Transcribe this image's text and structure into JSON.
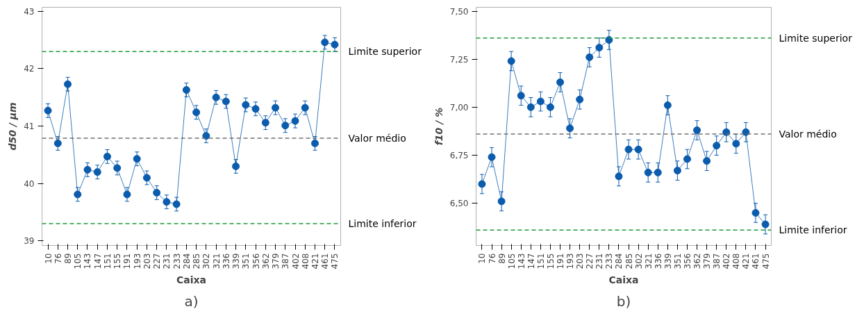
{
  "chart_data": [
    {
      "type": "line",
      "xlabel": "Caixa",
      "ylabel": "d50 / µm",
      "annotations": [
        "a)"
      ],
      "categories": [
        "10",
        "76",
        "89",
        "105",
        "143",
        "147",
        "151",
        "155",
        "191",
        "193",
        "203",
        "227",
        "231",
        "233",
        "284",
        "285",
        "302",
        "321",
        "336",
        "339",
        "351",
        "356",
        "362",
        "379",
        "387",
        "402",
        "408",
        "421",
        "461",
        "475"
      ],
      "series": [
        {
          "color": "#0b5cad",
          "values": [
            41.27,
            40.7,
            41.73,
            39.81,
            40.24,
            40.2,
            40.47,
            40.27,
            39.81,
            40.43,
            40.1,
            39.84,
            39.68,
            39.64,
            41.63,
            41.24,
            40.83,
            41.5,
            41.43,
            40.3,
            41.37,
            41.3,
            41.06,
            41.32,
            41.01,
            41.09,
            41.32,
            40.7,
            42.46,
            42.42
          ],
          "errors": [
            0.12,
            0.12,
            0.12,
            0.12,
            0.12,
            0.12,
            0.12,
            0.12,
            0.12,
            0.12,
            0.12,
            0.12,
            0.12,
            0.12,
            0.12,
            0.12,
            0.12,
            0.12,
            0.12,
            0.12,
            0.12,
            0.12,
            0.12,
            0.12,
            0.12,
            0.12,
            0.12,
            0.12,
            0.12,
            0.12
          ]
        }
      ],
      "ylim": [
        38.92,
        43.07
      ],
      "yticks": [
        39,
        40,
        41,
        42,
        43
      ],
      "grid": false,
      "marker": "circle",
      "line_style": "solid",
      "ref_lines": [
        {
          "axis": "y",
          "value": 42.3,
          "label": "Limite superior",
          "color": "#1a9a3a",
          "line_style": "dashed"
        },
        {
          "axis": "y",
          "value": 40.79,
          "label": "Valor médio",
          "color": "#707070",
          "line_style": "dashed"
        },
        {
          "axis": "y",
          "value": 39.3,
          "label": "Limite inferior",
          "color": "#1a9a3a",
          "line_style": "dashed"
        }
      ]
    },
    {
      "type": "line",
      "xlabel": "Caixa",
      "ylabel": "f10 / %",
      "annotations": [
        "b)"
      ],
      "categories": [
        "10",
        "76",
        "89",
        "105",
        "143",
        "147",
        "151",
        "155",
        "191",
        "193",
        "203",
        "227",
        "231",
        "233",
        "284",
        "285",
        "302",
        "321",
        "336",
        "339",
        "351",
        "356",
        "362",
        "379",
        "387",
        "402",
        "408",
        "421",
        "461",
        "475"
      ],
      "series": [
        {
          "color": "#0b5cad",
          "values": [
            6.6,
            6.74,
            6.51,
            7.24,
            7.06,
            7.0,
            7.03,
            7.0,
            7.13,
            6.89,
            7.04,
            7.26,
            7.31,
            7.35,
            6.64,
            6.78,
            6.78,
            6.66,
            6.66,
            7.01,
            6.67,
            6.73,
            6.88,
            6.72,
            6.8,
            6.87,
            6.81,
            6.87,
            6.45,
            6.39
          ],
          "errors": [
            0.05,
            0.05,
            0.05,
            0.05,
            0.05,
            0.05,
            0.05,
            0.05,
            0.05,
            0.05,
            0.05,
            0.05,
            0.05,
            0.05,
            0.05,
            0.05,
            0.05,
            0.05,
            0.05,
            0.05,
            0.05,
            0.05,
            0.05,
            0.05,
            0.05,
            0.05,
            0.05,
            0.05,
            0.05,
            0.05
          ]
        }
      ],
      "ylim": [
        6.28,
        7.52
      ],
      "yticks": [
        {
          "value": 6.5,
          "label": "6,50"
        },
        {
          "value": 6.75,
          "label": "6,75"
        },
        {
          "value": 7.0,
          "label": "7,00"
        },
        {
          "value": 7.25,
          "label": "7,25"
        },
        {
          "value": 7.5,
          "label": "7,50"
        }
      ],
      "grid": false,
      "marker": "circle",
      "line_style": "solid",
      "ref_lines": [
        {
          "axis": "y",
          "value": 7.36,
          "label": "Limite superior",
          "color": "#1a9a3a",
          "line_style": "dashed"
        },
        {
          "axis": "y",
          "value": 6.86,
          "label": "Valor médio",
          "color": "#707070",
          "line_style": "dashed"
        },
        {
          "axis": "y",
          "value": 6.36,
          "label": "Limite inferior",
          "color": "#1a9a3a",
          "line_style": "dashed"
        }
      ]
    }
  ]
}
